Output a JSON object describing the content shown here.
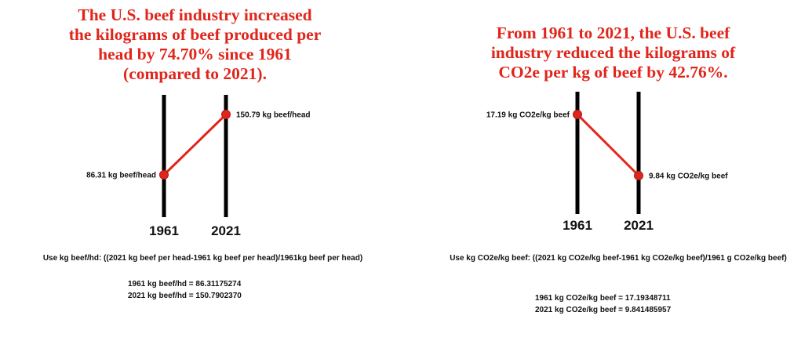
{
  "chart_data": [
    {
      "type": "line",
      "title": [
        "The U.S. beef industry increased",
        "the kilograms of beef produced per",
        "head by 74.70% since 1961",
        "(compared to 2021)."
      ],
      "categories": [
        "1961",
        "2021"
      ],
      "values": [
        86.31,
        150.79
      ],
      "point_labels": [
        "86.31 kg beef/head",
        "150.79 kg beef/head"
      ],
      "formula": "Use kg beef/hd: ((2021 kg beef per head-1961 kg beef per head)/1961kg beef per head)",
      "calc_lines": [
        "1961 kg beef/hd = 86.31175274",
        "2021 kg beef/hd = 150.7902370"
      ],
      "line_color": "#e0251b"
    },
    {
      "type": "line",
      "title": [
        "From 1961 to 2021, the U.S. beef",
        "industry reduced the kilograms of",
        "CO2e per kg of beef by 42.76%."
      ],
      "categories": [
        "1961",
        "2021"
      ],
      "values": [
        17.19,
        9.84
      ],
      "point_labels": [
        "17.19 kg CO2e/kg beef",
        "9.84 kg CO2e/kg beef"
      ],
      "formula": "Use kg CO2e/kg beef: ((2021 kg CO2e/kg beef-1961 kg CO2e/kg beef)/1961 g CO2e/kg beef)",
      "calc_lines": [
        "1961 kg CO2e/kg beef = 17.19348711",
        "2021 kg CO2e/kg beef = 9.841485957"
      ],
      "line_color": "#e0251b"
    }
  ]
}
